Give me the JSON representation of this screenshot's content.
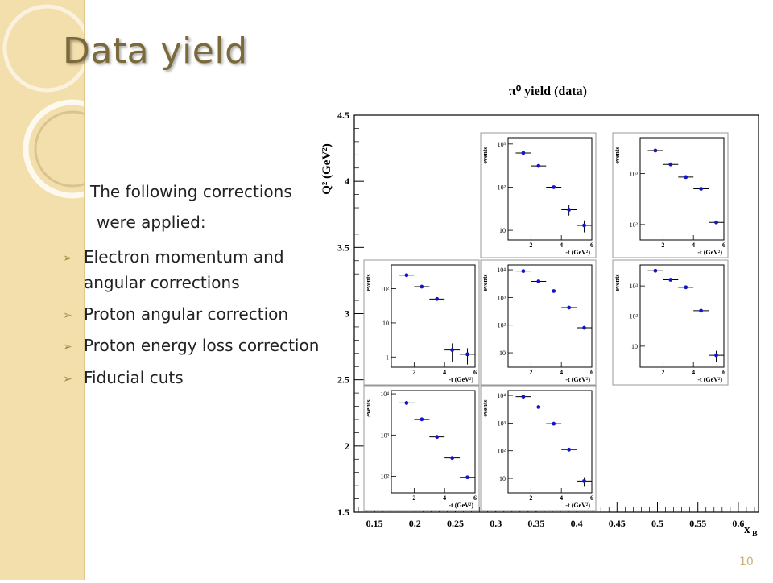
{
  "slide": {
    "title": "Data yield",
    "intro_line1": "The following corrections",
    "intro_line2": "were applied:",
    "bullets": [
      "Electron momentum and",
      "angular corrections",
      "Proton angular correction",
      "Proton energy loss correction",
      "Fiducial cuts"
    ],
    "page_number": "10"
  },
  "colors": {
    "sidebar": "#f3dfac",
    "marker": "#1515c8",
    "accent": "#a08a45"
  },
  "chart_data": {
    "type": "scatter",
    "title": "π⁰ yield (data)",
    "xlabel": "x",
    "xlabel_sub": "B",
    "ylabel": "Q² (GeV²)",
    "xlim": [
      0.125,
      0.625
    ],
    "ylim": [
      1.5,
      4.5
    ],
    "x_ticks": [
      "0.15",
      "0.2",
      "0.25",
      "0.3",
      "0.35",
      "0.4",
      "0.45",
      "0.5",
      "0.55",
      "0.6"
    ],
    "x_tick_values": [
      0.15,
      0.2,
      0.25,
      0.3,
      0.35,
      0.4,
      0.45,
      0.5,
      0.55,
      0.6
    ],
    "y_ticks": [
      "1.5",
      "2",
      "2.5",
      "3",
      "3.5",
      "4",
      "4.5"
    ],
    "y_tick_values": [
      1.5,
      2,
      2.5,
      3,
      3.5,
      4,
      4.5
    ],
    "inset_xlim": [
      0.5,
      6.0
    ],
    "inset_xticks": [
      "2",
      "4",
      "6"
    ],
    "inset_xtick_values": [
      2,
      4,
      6
    ],
    "inset_xlabel": "-t (GeV²)",
    "inset_ylabel": "events",
    "insets": [
      {
        "row": 0,
        "col": 2,
        "ylim": [
          6,
          1400
        ],
        "yticks": [
          "10",
          "10²",
          "10³"
        ],
        "ytick_values": [
          10,
          100,
          1000
        ],
        "points": [
          [
            1.5,
            620,
            1.0,
            0
          ],
          [
            2.5,
            310,
            1.0,
            0
          ],
          [
            3.5,
            100,
            1.0,
            0
          ],
          [
            4.5,
            30,
            1.0,
            8
          ],
          [
            5.5,
            13,
            1.0,
            4
          ]
        ]
      },
      {
        "row": 0,
        "col": 3,
        "ylim": [
          50,
          5000
        ],
        "yticks": [
          "10²",
          "10³"
        ],
        "ytick_values": [
          100,
          1000
        ],
        "points": [
          [
            1.5,
            2800,
            1.0,
            0
          ],
          [
            2.5,
            1500,
            1.0,
            0
          ],
          [
            3.5,
            850,
            1.0,
            0
          ],
          [
            4.5,
            500,
            1.0,
            0
          ],
          [
            5.5,
            110,
            1.0,
            0
          ]
        ]
      },
      {
        "row": 1,
        "col": 1,
        "ylim": [
          0.5,
          500
        ],
        "yticks": [
          "1",
          "10",
          "10²"
        ],
        "ytick_values": [
          1,
          10,
          100
        ],
        "points": [
          [
            1.5,
            250,
            1.0,
            0
          ],
          [
            2.5,
            115,
            1.0,
            0
          ],
          [
            3.5,
            50,
            1.0,
            0
          ],
          [
            4.5,
            1.6,
            1.0,
            0.9
          ],
          [
            5.5,
            1.2,
            1.0,
            0.6
          ]
        ]
      },
      {
        "row": 1,
        "col": 2,
        "ylim": [
          3,
          15000
        ],
        "yticks": [
          "10",
          "10²",
          "10³",
          "10⁴"
        ],
        "ytick_values": [
          10,
          100,
          1000,
          10000
        ],
        "points": [
          [
            1.5,
            9000,
            1.0,
            0
          ],
          [
            2.5,
            3800,
            1.0,
            0
          ],
          [
            3.5,
            1700,
            1.0,
            0
          ],
          [
            4.5,
            430,
            1.0,
            0
          ],
          [
            5.5,
            80,
            1.0,
            0
          ]
        ]
      },
      {
        "row": 1,
        "col": 3,
        "ylim": [
          2,
          5000
        ],
        "yticks": [
          "10",
          "10²",
          "10³"
        ],
        "ytick_values": [
          10,
          100,
          1000
        ],
        "points": [
          [
            1.5,
            3200,
            1.0,
            0
          ],
          [
            2.5,
            1600,
            1.0,
            0
          ],
          [
            3.5,
            900,
            1.0,
            0
          ],
          [
            4.5,
            150,
            1.0,
            0
          ],
          [
            5.5,
            5,
            1.0,
            2
          ]
        ]
      },
      {
        "row": 2,
        "col": 1,
        "ylim": [
          40,
          12000
        ],
        "yticks": [
          "10²",
          "10³",
          "10⁴"
        ],
        "ytick_values": [
          100,
          1000,
          10000
        ],
        "points": [
          [
            1.5,
            6000,
            1.0,
            0
          ],
          [
            2.5,
            2400,
            1.0,
            0
          ],
          [
            3.5,
            900,
            1.0,
            0
          ],
          [
            4.5,
            280,
            1.0,
            0
          ],
          [
            5.5,
            95,
            1.0,
            0
          ]
        ]
      },
      {
        "row": 2,
        "col": 2,
        "ylim": [
          3,
          15000
        ],
        "yticks": [
          "10",
          "10²",
          "10³",
          "10⁴"
        ],
        "ytick_values": [
          10,
          100,
          1000,
          10000
        ],
        "points": [
          [
            1.5,
            9000,
            1.0,
            0
          ],
          [
            2.5,
            3800,
            1.0,
            0
          ],
          [
            3.5,
            950,
            1.0,
            0
          ],
          [
            4.5,
            110,
            1.0,
            0
          ],
          [
            5.5,
            8,
            1.0,
            3
          ]
        ]
      }
    ]
  }
}
